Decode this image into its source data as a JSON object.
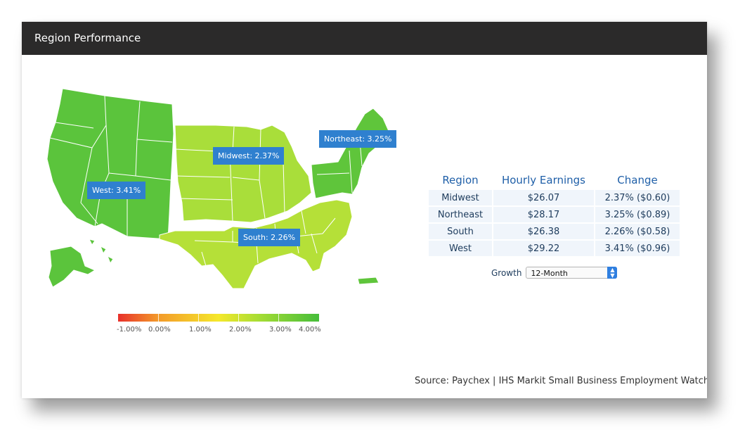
{
  "header": {
    "title": "Region Performance"
  },
  "map": {
    "labels": {
      "west": "West: 3.41%",
      "midwest": "Midwest: 2.37%",
      "northeast": "Northeast: 3.25%",
      "south": "South: 2.26%"
    },
    "region_values_percent": {
      "West": 3.41,
      "Midwest": 2.37,
      "Northeast": 3.25,
      "South": 2.26
    },
    "colors": {
      "west": "#5bc43c",
      "northeast": "#5fc53b",
      "midwest": "#a9de3a",
      "south": "#b5e038",
      "label_bg": "#2f80cf"
    }
  },
  "legend": {
    "labels": [
      "-1.00%",
      "0.00%",
      "1.00%",
      "2.00%",
      "3.00%",
      "4.00%"
    ],
    "range": [
      -1.0,
      4.0
    ],
    "colors": [
      "#e8302b",
      "#f5e82b",
      "#45bd3a"
    ]
  },
  "table": {
    "headers": {
      "region": "Region",
      "earnings": "Hourly Earnings",
      "change": "Change"
    },
    "rows": [
      {
        "region": "Midwest",
        "earnings": "$26.07",
        "change": "2.37% ($0.60)"
      },
      {
        "region": "Northeast",
        "earnings": "$28.17",
        "change": "3.25% ($0.89)"
      },
      {
        "region": "South",
        "earnings": "$26.38",
        "change": "2.26% ($0.58)"
      },
      {
        "region": "West",
        "earnings": "$29.22",
        "change": "3.41% ($0.96)"
      }
    ]
  },
  "growth": {
    "label": "Growth",
    "selected": "12-Month"
  },
  "source": "Source: Paychex | IHS Markit Small Business Employment Watch"
}
